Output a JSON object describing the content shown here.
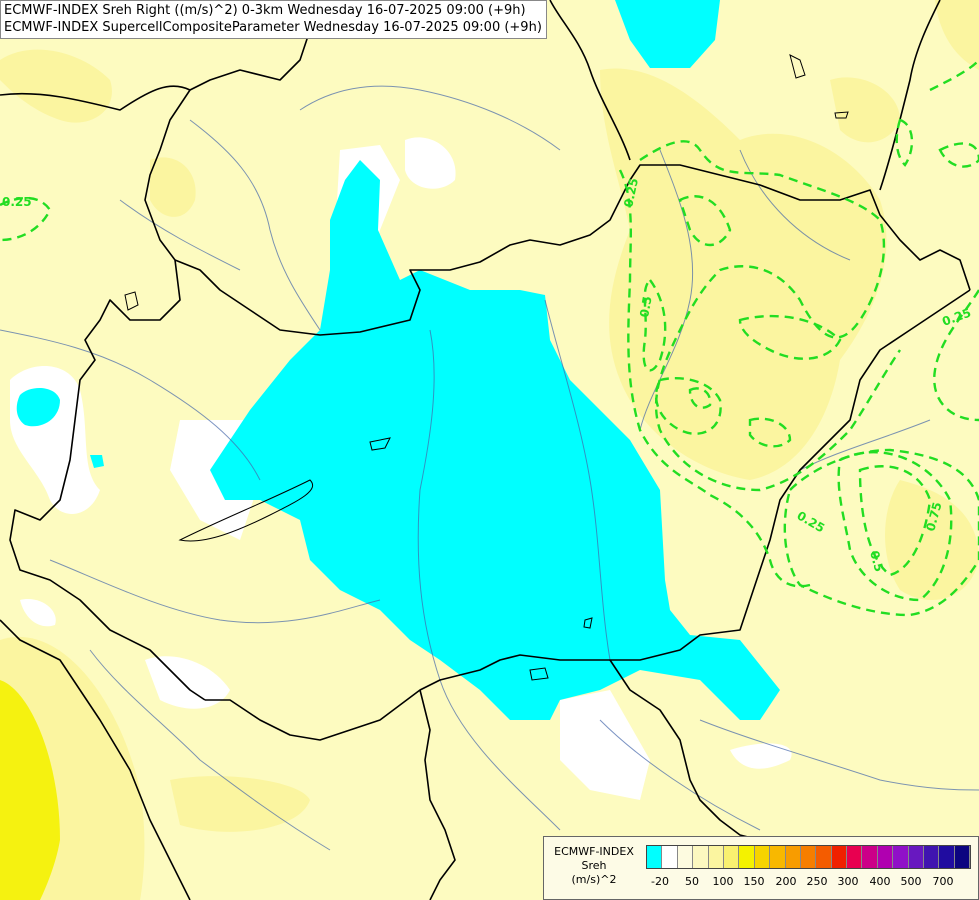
{
  "header": {
    "line1": "ECMWF-INDEX Sreh Right ((m/s)^2) 0-3km Wednesday 16-07-2025 09:00 (+9h)",
    "line2": "ECMWF-INDEX SupercellCompositeParameter Wednesday 16-07-2025 09:00 (+9h)"
  },
  "contour_labels": [
    "0.25",
    "0.25",
    "0.5",
    "0.25",
    "0.25",
    "0.75",
    "0.5"
  ],
  "colors": {
    "background_yellow": "#fdfbc0",
    "light_yellow": "#fbf5a0",
    "strong_yellow": "#f4f200",
    "cyan": "#00ffff",
    "white": "#ffffff",
    "contour_green": "#22dd22",
    "border_black": "#000000",
    "river_blue": "#4466aa"
  },
  "legend": {
    "title_lines": [
      "ECMWF-INDEX",
      "Sreh",
      "(m/s)^2"
    ],
    "swatch_colors": [
      "#00ffff",
      "#ffffff",
      "#fdfbe0",
      "#fcf8c0",
      "#fbf5a0",
      "#f9f070",
      "#f4f200",
      "#f6d400",
      "#f8b800",
      "#f89c00",
      "#f67e00",
      "#f45c00",
      "#f02000",
      "#e80050",
      "#cc0088",
      "#b000b0",
      "#9010c8",
      "#6818c0",
      "#4014b0",
      "#200ca0",
      "#0c0480"
    ],
    "tick_labels": [
      "-20",
      "50",
      "100",
      "150",
      "200",
      "250",
      "300",
      "400",
      "500",
      "700"
    ]
  }
}
